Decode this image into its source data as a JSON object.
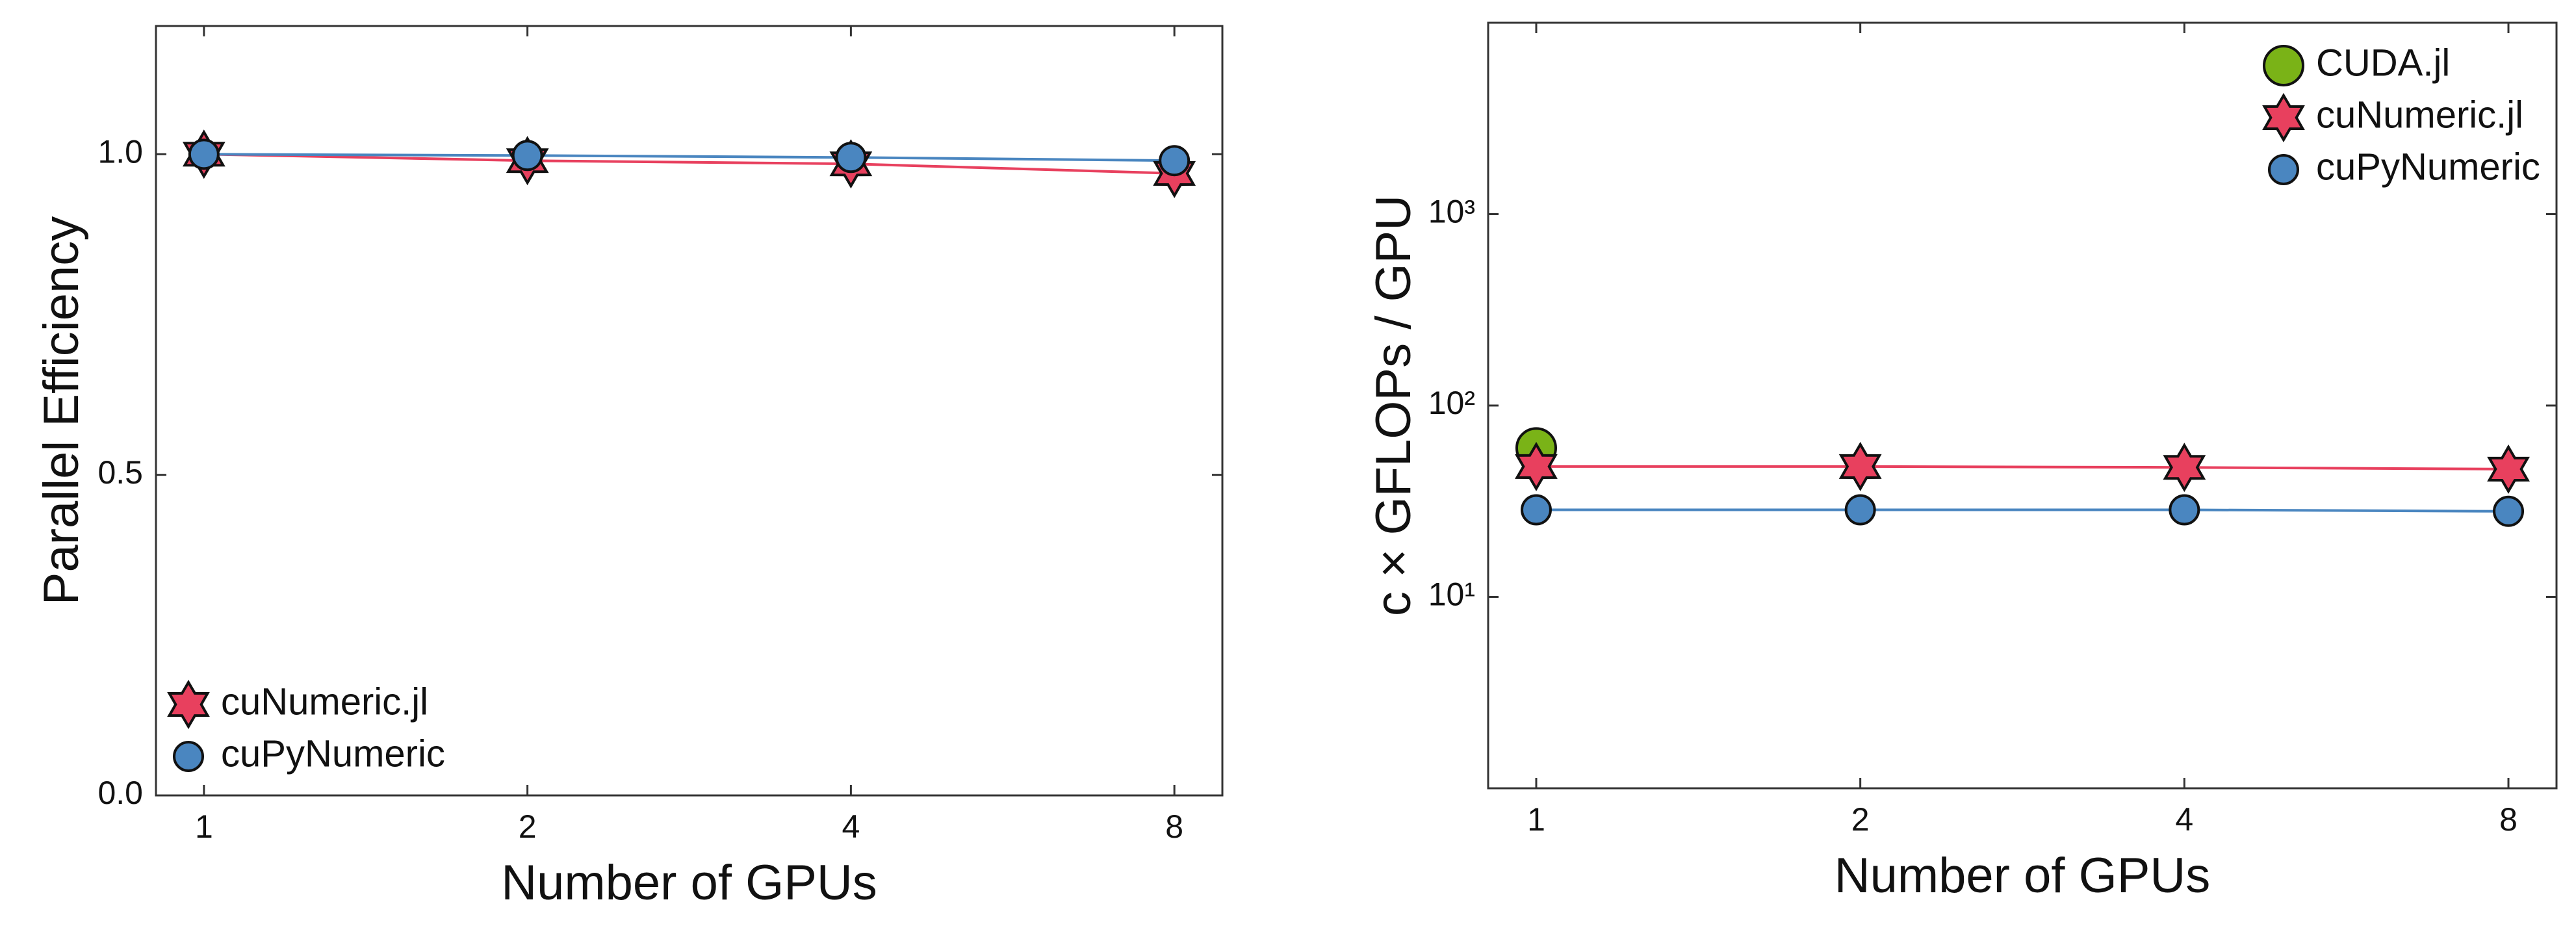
{
  "chart_data": [
    {
      "type": "line",
      "xlabel": "Number of GPUs",
      "ylabel": "Parallel Efficiency",
      "categories": [
        "1",
        "2",
        "4",
        "8"
      ],
      "ylim": [
        0,
        1.2
      ],
      "yticks": [
        {
          "value": 0,
          "label": "0.0"
        },
        0.5,
        {
          "value": 1,
          "label": "1.0"
        }
      ],
      "log_y": false,
      "legend": "lower left",
      "series": [
        {
          "name": "cuNumeric.jl",
          "color": "#e8405e",
          "marker": "star",
          "values": [
            1.0,
            0.99,
            0.985,
            0.97
          ]
        },
        {
          "name": "cuPyNumeric",
          "color": "#4a86c0",
          "marker": "circle",
          "values": [
            1.0,
            0.998,
            0.995,
            0.99
          ]
        }
      ]
    },
    {
      "type": "line",
      "xlabel": "Number of GPUs",
      "ylabel": "c × GFLOPs / GPU",
      "categories": [
        "1",
        "2",
        "4",
        "8"
      ],
      "ylim": [
        1,
        10000
      ],
      "yticks": [
        {
          "value": 10,
          "label": "10¹"
        },
        {
          "value": 100,
          "label": "10²"
        },
        {
          "value": 1000,
          "label": "10³"
        }
      ],
      "log_y": true,
      "legend": "upper right",
      "series": [
        {
          "name": "CUDA.jl",
          "color": "#7ab317",
          "marker": "bigcircle",
          "values": [
            60,
            null,
            null,
            null
          ]
        },
        {
          "name": "cuNumeric.jl",
          "color": "#e8405e",
          "marker": "star",
          "values": [
            48,
            48,
            47.5,
            46.5
          ]
        },
        {
          "name": "cuPyNumeric",
          "color": "#4a86c0",
          "marker": "circle",
          "values": [
            28.5,
            28.5,
            28.5,
            28
          ]
        }
      ]
    }
  ]
}
